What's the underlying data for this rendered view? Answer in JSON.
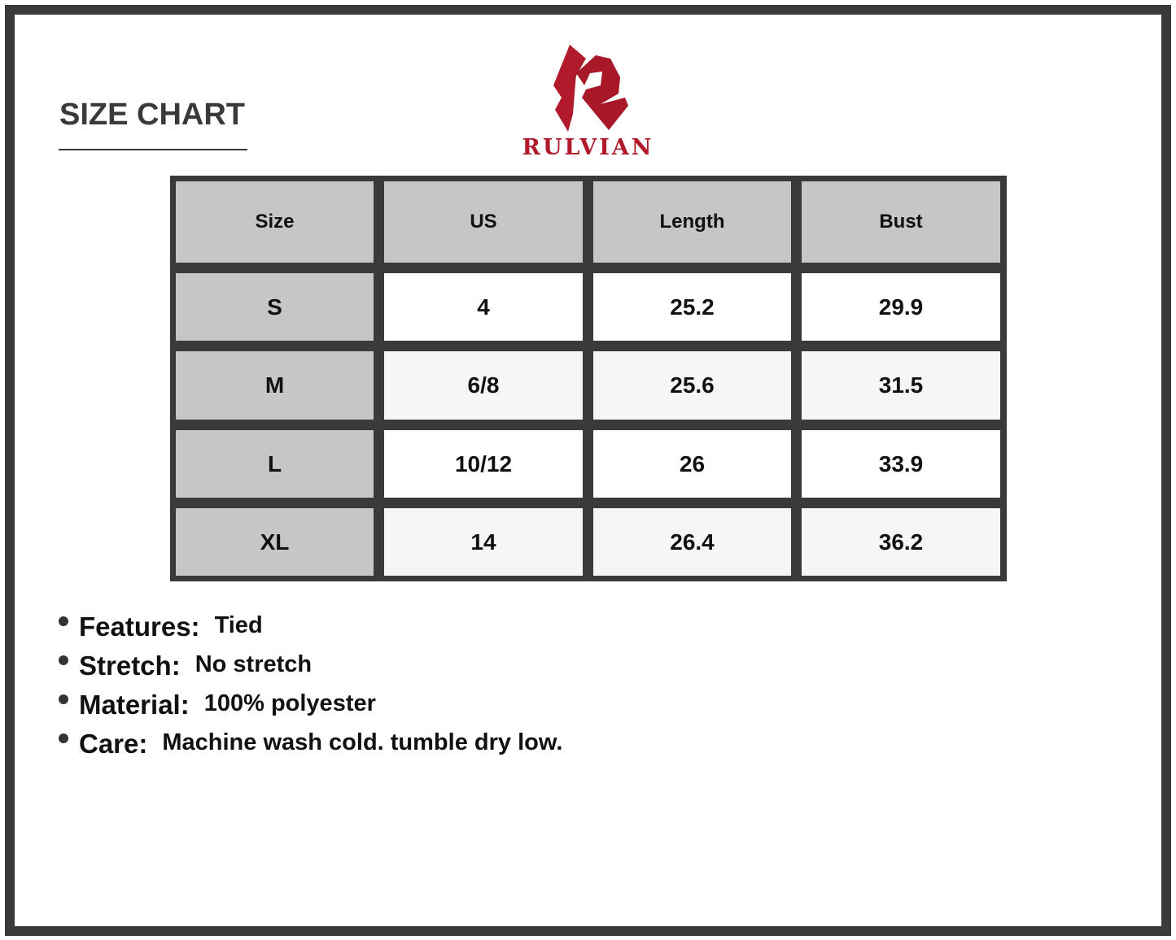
{
  "title": "SIZE CHART",
  "brand": {
    "name": "RULVIAN",
    "color": "#b01a2a"
  },
  "table": {
    "headers": [
      "Size",
      "US",
      "Length",
      "Bust"
    ],
    "rows": [
      [
        "S",
        "4",
        "25.2",
        "29.9"
      ],
      [
        "M",
        "6/8",
        "25.6",
        "31.5"
      ],
      [
        "L",
        "10/12",
        "26",
        "33.9"
      ],
      [
        "XL",
        "14",
        "26.4",
        "36.2"
      ]
    ]
  },
  "details": [
    {
      "label": "Features:",
      "value": "Tied"
    },
    {
      "label": "Stretch:",
      "value": "No stretch"
    },
    {
      "label": "Material:",
      "value": "100% polyester"
    },
    {
      "label": "Care:",
      "value": "Machine wash cold. tumble dry low."
    }
  ]
}
